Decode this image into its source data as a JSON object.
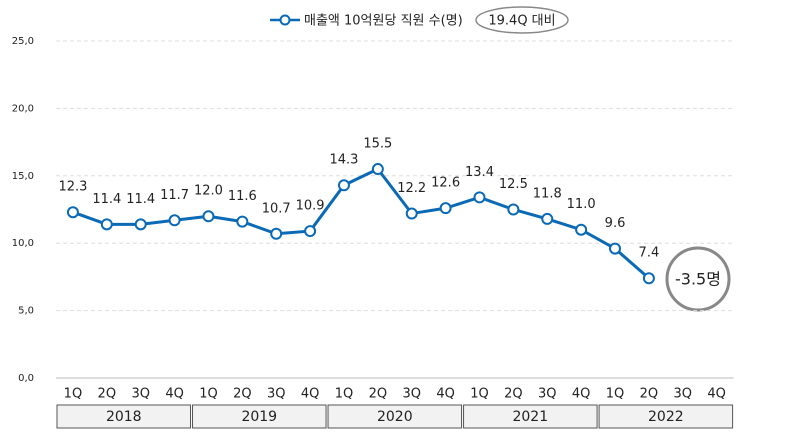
{
  "chart_data": {
    "type": "line",
    "categories": [
      "1Q",
      "2Q",
      "3Q",
      "4Q",
      "1Q",
      "2Q",
      "3Q",
      "4Q",
      "1Q",
      "2Q",
      "3Q",
      "4Q",
      "1Q",
      "2Q",
      "3Q",
      "4Q",
      "1Q",
      "2Q",
      "3Q",
      "4Q"
    ],
    "groups": [
      "2018",
      "2019",
      "2020",
      "2021",
      "2022"
    ],
    "series": [
      {
        "name": "매출액 10억원당 직원 수(명)",
        "color": "#0a6ab5",
        "values": [
          12.3,
          11.4,
          11.4,
          11.7,
          12.0,
          11.6,
          10.7,
          10.9,
          14.3,
          15.5,
          12.2,
          12.6,
          13.4,
          12.5,
          11.8,
          11.0,
          9.6,
          7.4,
          null,
          null
        ],
        "value_labels": [
          "12.3",
          "11.4",
          "11.4",
          "11.7",
          "12.0",
          "11.6",
          "10.7",
          "10.9",
          "14.3",
          "15.5",
          "12.2",
          "12.6",
          "13.4",
          "12.5",
          "11.8",
          "11.0",
          "9.6",
          "7.4",
          null,
          null
        ]
      }
    ],
    "ylim": [
      0,
      25
    ],
    "yticks": [
      {
        "value": 0,
        "label": "0,0"
      },
      {
        "value": 5,
        "label": "5,0"
      },
      {
        "value": 10,
        "label": "10,0"
      },
      {
        "value": 15,
        "label": "15,0"
      },
      {
        "value": 20,
        "label": "20,0"
      },
      {
        "value": 25,
        "label": "25,0"
      }
    ],
    "grid": true,
    "legend": "top",
    "annotations": [
      "19.4Q 대비",
      "-3.5명"
    ]
  }
}
